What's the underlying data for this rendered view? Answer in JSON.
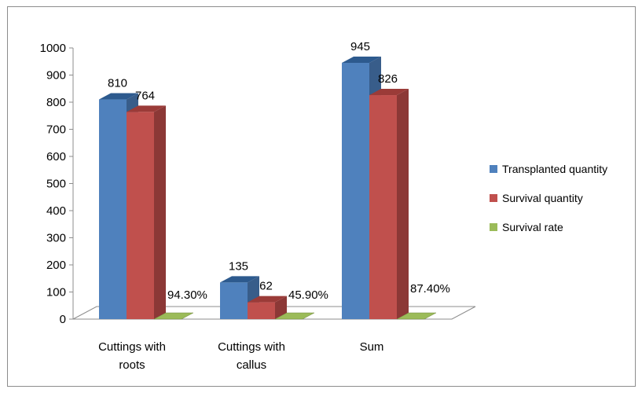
{
  "chart_data": {
    "type": "bar",
    "categories": [
      "Cuttings with roots",
      "Cuttings with callus",
      "Sum"
    ],
    "category_lines": [
      [
        "Cuttings with",
        "roots"
      ],
      [
        "Cuttings with",
        "callus"
      ],
      [
        "Sum"
      ]
    ],
    "series": [
      {
        "name": "Transplanted quantity",
        "color": "#4f81bd",
        "side": "#385d8a",
        "top": "#2d5a8e",
        "values": [
          810,
          135,
          945
        ],
        "labels": [
          "810",
          "135",
          "945"
        ]
      },
      {
        "name": "Survival quantity",
        "color": "#c0504d",
        "side": "#8c3836",
        "top": "#9b3b38",
        "values": [
          764,
          62,
          826
        ],
        "labels": [
          "764",
          "62",
          "826"
        ]
      },
      {
        "name": "Survival rate",
        "color": "#9bbb59",
        "side": "#71893f",
        "top": "#71893f",
        "values": [
          0.943,
          0.459,
          0.874
        ],
        "labels": [
          "94.30%",
          "45.90%",
          "87.40%"
        ]
      }
    ],
    "ylim": [
      0,
      1000
    ],
    "yticks": [
      0,
      100,
      200,
      300,
      400,
      500,
      600,
      700,
      800,
      900,
      1000
    ],
    "title": "",
    "xlabel": "",
    "ylabel": "",
    "legend": "right",
    "grid": false,
    "style": "3d"
  }
}
